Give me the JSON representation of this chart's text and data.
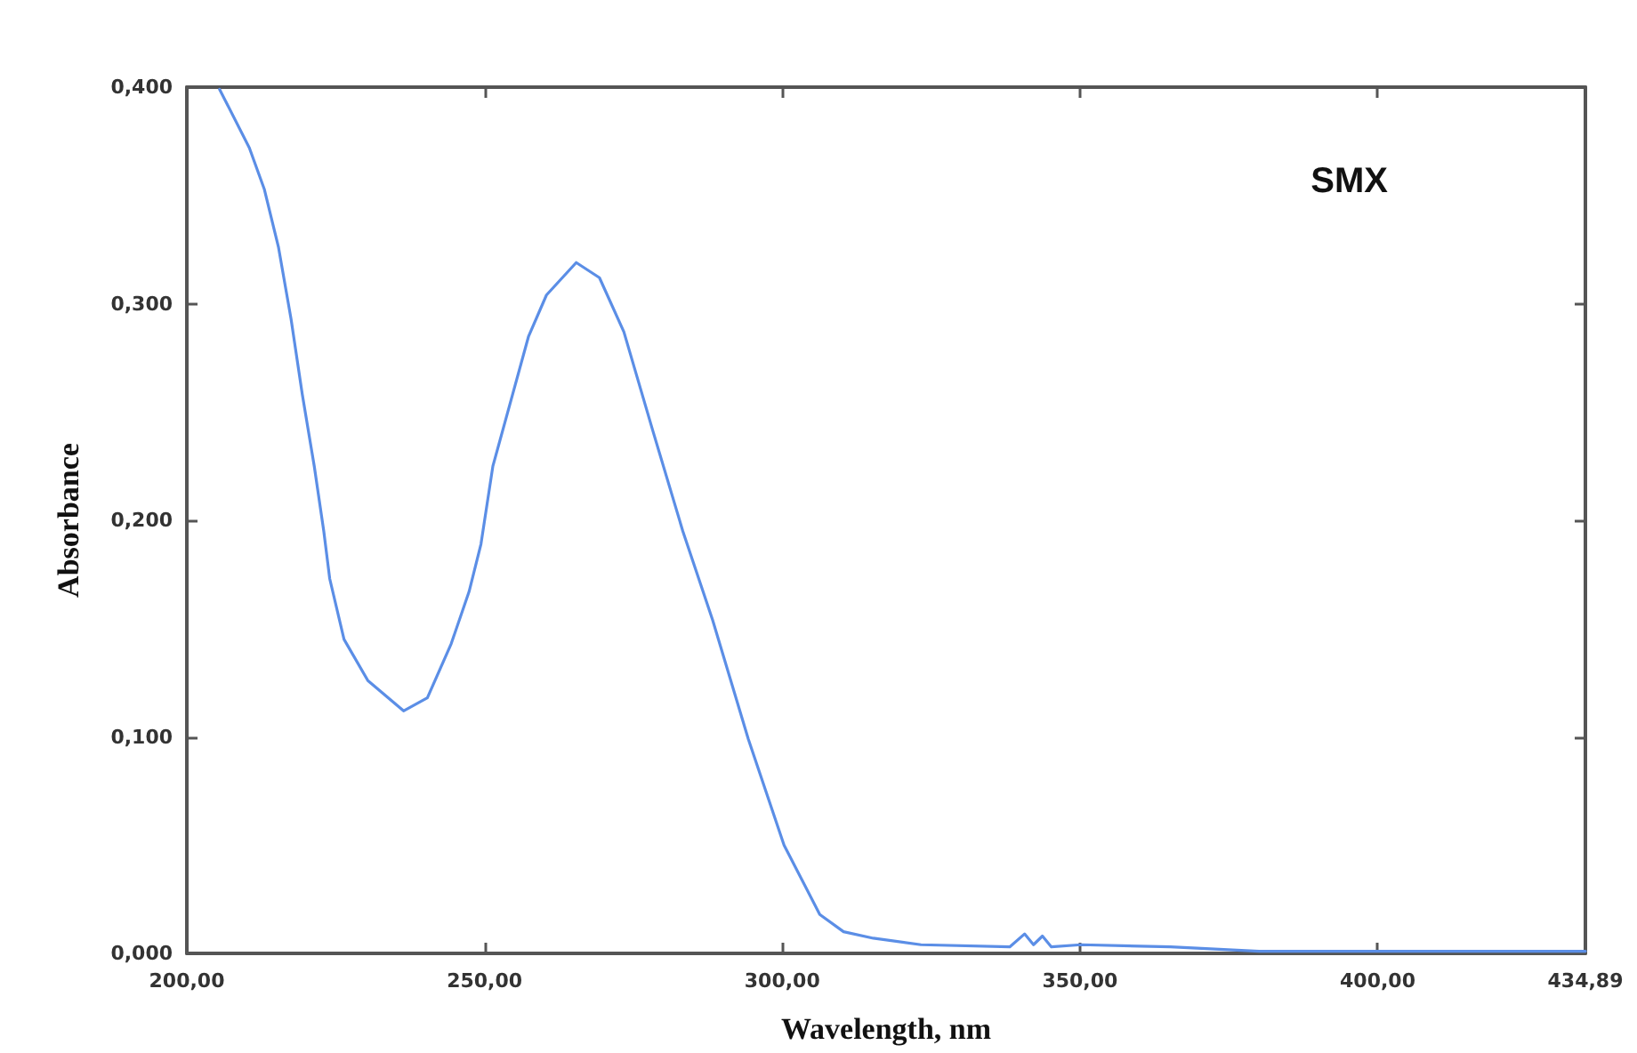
{
  "chart_data": {
    "type": "line",
    "xlabel": "Wavelength, nm",
    "ylabel": "Absorbance",
    "annotations": [
      "SMX"
    ],
    "series": [
      {
        "color": "#5b8ee6",
        "x": [
          205.5,
          210.5,
          213.0,
          215.4,
          217.5,
          219.4,
          221.4,
          223.0,
          224.0,
          226.4,
          230.4,
          236.4,
          240.4,
          244.4,
          247.4,
          249.4,
          251.4,
          254.4,
          257.4,
          260.4,
          265.4,
          269.3,
          273.4,
          278.3,
          283.3,
          288.3,
          294.3,
          300.3,
          306.3,
          310.3,
          315.3,
          323.3,
          338.2,
          340.7,
          342.2,
          343.7,
          345.2,
          350.2,
          365.2,
          380.1,
          400.0,
          434.89
        ],
        "values": [
          0.399,
          0.372,
          0.353,
          0.326,
          0.293,
          0.258,
          0.225,
          0.195,
          0.173,
          0.145,
          0.126,
          0.112,
          0.118,
          0.143,
          0.167,
          0.189,
          0.225,
          0.255,
          0.285,
          0.304,
          0.319,
          0.312,
          0.287,
          0.241,
          0.195,
          0.154,
          0.099,
          0.05,
          0.018,
          0.01,
          0.007,
          0.004,
          0.003,
          0.009,
          0.004,
          0.008,
          0.003,
          0.004,
          0.003,
          0.001,
          0.001,
          0.001
        ]
      }
    ],
    "xlim": [
      200,
      434.89
    ],
    "xticks": [
      {
        "value": 200,
        "label": "200,00"
      },
      {
        "value": 250,
        "label": "250,00"
      },
      {
        "value": 300,
        "label": "300,00"
      },
      {
        "value": 350,
        "label": "350,00"
      },
      {
        "value": 400,
        "label": "400,00"
      },
      {
        "value": 434.89,
        "label": "434,89"
      }
    ],
    "ylim": [
      0,
      0.4
    ],
    "yticks": [
      {
        "value": 0,
        "label": "0,000"
      },
      {
        "value": 0.1,
        "label": "0,100"
      },
      {
        "value": 0.2,
        "label": "0,200"
      },
      {
        "value": 0.3,
        "label": "0,300"
      },
      {
        "value": 0.4,
        "label": "0,400"
      }
    ],
    "grid": false,
    "marker": "none",
    "line_style": "solid"
  }
}
